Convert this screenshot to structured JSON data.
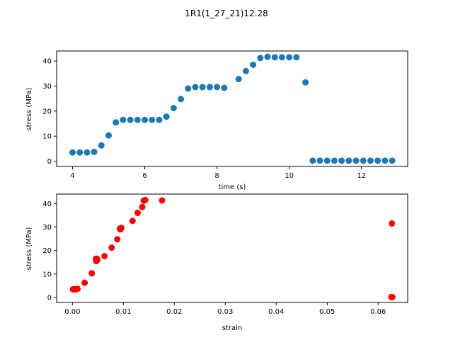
{
  "title": "1R1(1_27_21)12.28",
  "chart_data": [
    {
      "type": "scatter",
      "xlabel": "time (s)",
      "ylabel": "stress (MPa)",
      "xlim": [
        3.56,
        13.28
      ],
      "ylim": [
        -2.1,
        44.0
      ],
      "xticks": [
        4,
        6,
        8,
        10,
        12
      ],
      "yticks": [
        0,
        10,
        20,
        30,
        40
      ],
      "color": "#1f77b4",
      "points": [
        [
          4.0,
          3.5
        ],
        [
          4.2,
          3.5
        ],
        [
          4.4,
          3.5
        ],
        [
          4.6,
          3.7
        ],
        [
          4.8,
          6.3
        ],
        [
          5.0,
          10.3
        ],
        [
          5.2,
          15.5
        ],
        [
          5.4,
          16.5
        ],
        [
          5.6,
          16.5
        ],
        [
          5.8,
          16.5
        ],
        [
          6.0,
          16.5
        ],
        [
          6.2,
          16.5
        ],
        [
          6.4,
          16.5
        ],
        [
          6.6,
          17.8
        ],
        [
          6.8,
          21.2
        ],
        [
          7.0,
          24.8
        ],
        [
          7.2,
          29.0
        ],
        [
          7.4,
          29.6
        ],
        [
          7.6,
          29.6
        ],
        [
          7.8,
          29.6
        ],
        [
          8.0,
          29.6
        ],
        [
          8.2,
          29.3
        ],
        [
          8.6,
          32.8
        ],
        [
          8.8,
          36.0
        ],
        [
          9.0,
          38.5
        ],
        [
          9.2,
          41.2
        ],
        [
          9.4,
          41.7
        ],
        [
          9.6,
          41.5
        ],
        [
          9.8,
          41.5
        ],
        [
          10.0,
          41.5
        ],
        [
          10.2,
          41.5
        ],
        [
          10.45,
          31.5
        ],
        [
          10.65,
          0.2
        ],
        [
          10.85,
          0.2
        ],
        [
          11.05,
          0.2
        ],
        [
          11.25,
          0.2
        ],
        [
          11.45,
          0.2
        ],
        [
          11.65,
          0.2
        ],
        [
          11.85,
          0.2
        ],
        [
          12.05,
          0.2
        ],
        [
          12.25,
          0.2
        ],
        [
          12.45,
          0.2
        ],
        [
          12.65,
          0.2
        ],
        [
          12.85,
          0.2
        ]
      ]
    },
    {
      "type": "scatter",
      "xlabel": "strain",
      "ylabel": "stress (MPa)",
      "xlim": [
        -0.0031,
        0.0658
      ],
      "ylim": [
        -2.1,
        44.0
      ],
      "xticks": [
        0.0,
        0.01,
        0.02,
        0.03,
        0.04,
        0.05,
        0.06
      ],
      "xticklabels": [
        "0.00",
        "0.01",
        "0.02",
        "0.03",
        "0.04",
        "0.05",
        "0.06"
      ],
      "yticks": [
        0,
        10,
        20,
        30,
        40
      ],
      "color": "#ff0000",
      "points": [
        [
          0.0001,
          3.5
        ],
        [
          0.0003,
          3.5
        ],
        [
          0.0006,
          3.5
        ],
        [
          0.001,
          3.7
        ],
        [
          0.0024,
          6.3
        ],
        [
          0.0038,
          10.3
        ],
        [
          0.0047,
          15.5
        ],
        [
          0.0048,
          16.5
        ],
        [
          0.0049,
          16.0
        ],
        [
          0.0046,
          16.5
        ],
        [
          0.0063,
          17.6
        ],
        [
          0.0077,
          21.2
        ],
        [
          0.0088,
          24.8
        ],
        [
          0.0094,
          29.0
        ],
        [
          0.0096,
          29.6
        ],
        [
          0.0093,
          29.3
        ],
        [
          0.0118,
          32.6
        ],
        [
          0.0128,
          36.0
        ],
        [
          0.0137,
          38.5
        ],
        [
          0.014,
          41.2
        ],
        [
          0.0143,
          41.5
        ],
        [
          0.0176,
          41.3
        ],
        [
          0.0627,
          31.5
        ],
        [
          0.0627,
          0.2
        ],
        [
          0.0628,
          0.2
        ],
        [
          0.0626,
          0.2
        ]
      ]
    }
  ]
}
